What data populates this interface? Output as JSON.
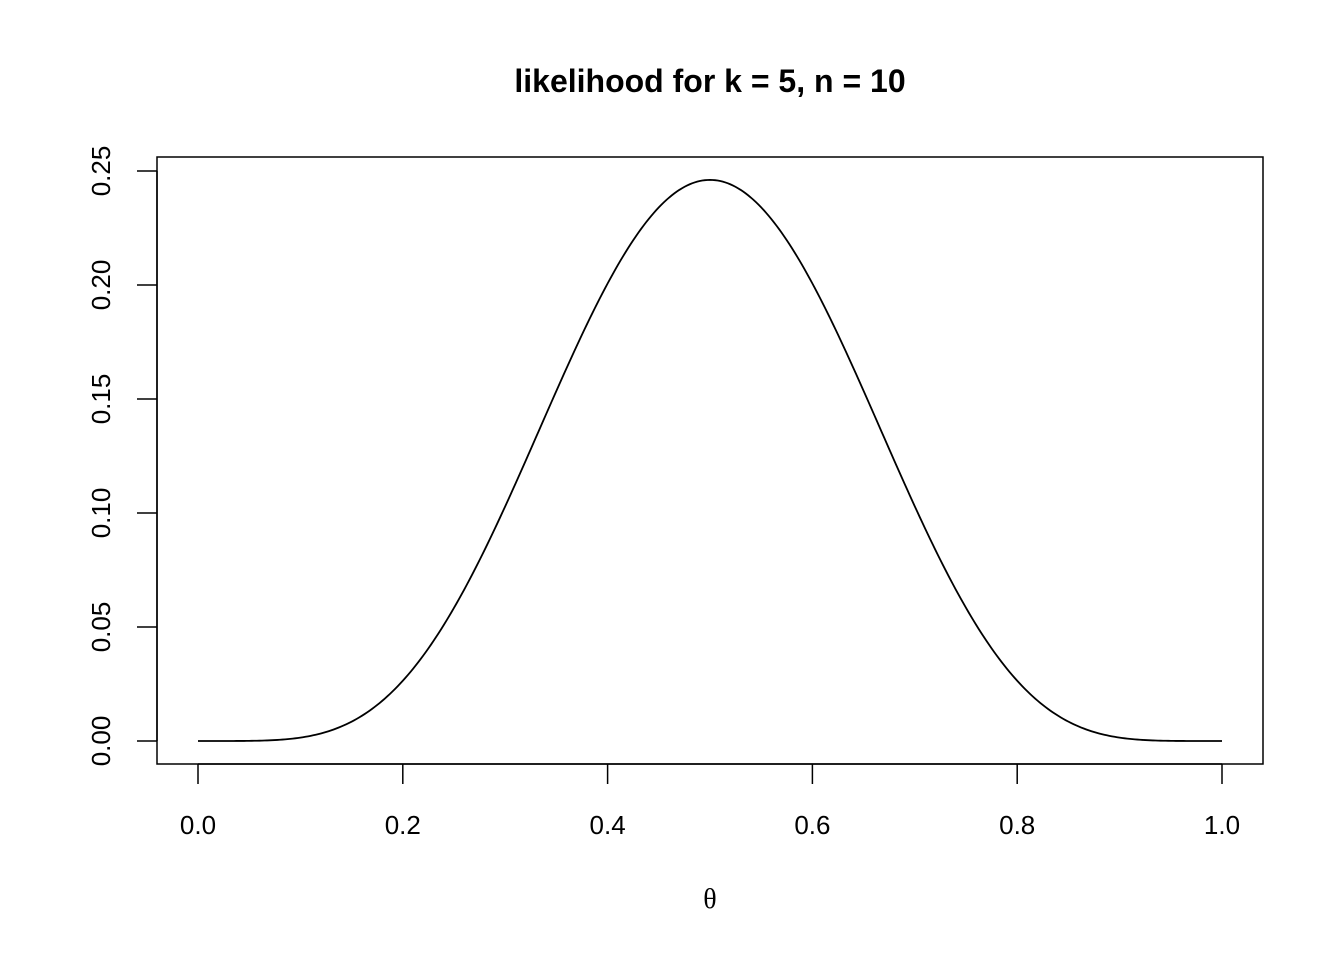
{
  "chart_data": {
    "type": "line",
    "title": "likelihood for k = 5, n = 10",
    "xlabel": "θ",
    "ylabel": "",
    "xlim": [
      0,
      1
    ],
    "ylim": [
      0,
      0.25
    ],
    "x_ticks": [
      "0.0",
      "0.2",
      "0.4",
      "0.6",
      "0.8",
      "1.0"
    ],
    "y_ticks": [
      "0.00",
      "0.05",
      "0.10",
      "0.15",
      "0.20",
      "0.25"
    ],
    "grid": false,
    "line_color": "#000000",
    "k": 5,
    "n": 10,
    "series": [
      {
        "x": [
          0,
          0.05,
          0.1,
          0.15,
          0.2,
          0.25,
          0.3,
          0.35,
          0.4,
          0.45,
          0.5,
          0.55,
          0.6,
          0.65,
          0.7,
          0.75,
          0.8,
          0.85,
          0.9,
          0.95,
          1
        ],
        "y": [
          0,
          0.0001,
          0.0015,
          0.0085,
          0.0264,
          0.0584,
          0.1029,
          0.1536,
          0.2007,
          0.234,
          0.2461,
          0.234,
          0.2007,
          0.1536,
          0.1029,
          0.0584,
          0.0264,
          0.0085,
          0.0015,
          0.0001,
          0
        ]
      }
    ]
  }
}
